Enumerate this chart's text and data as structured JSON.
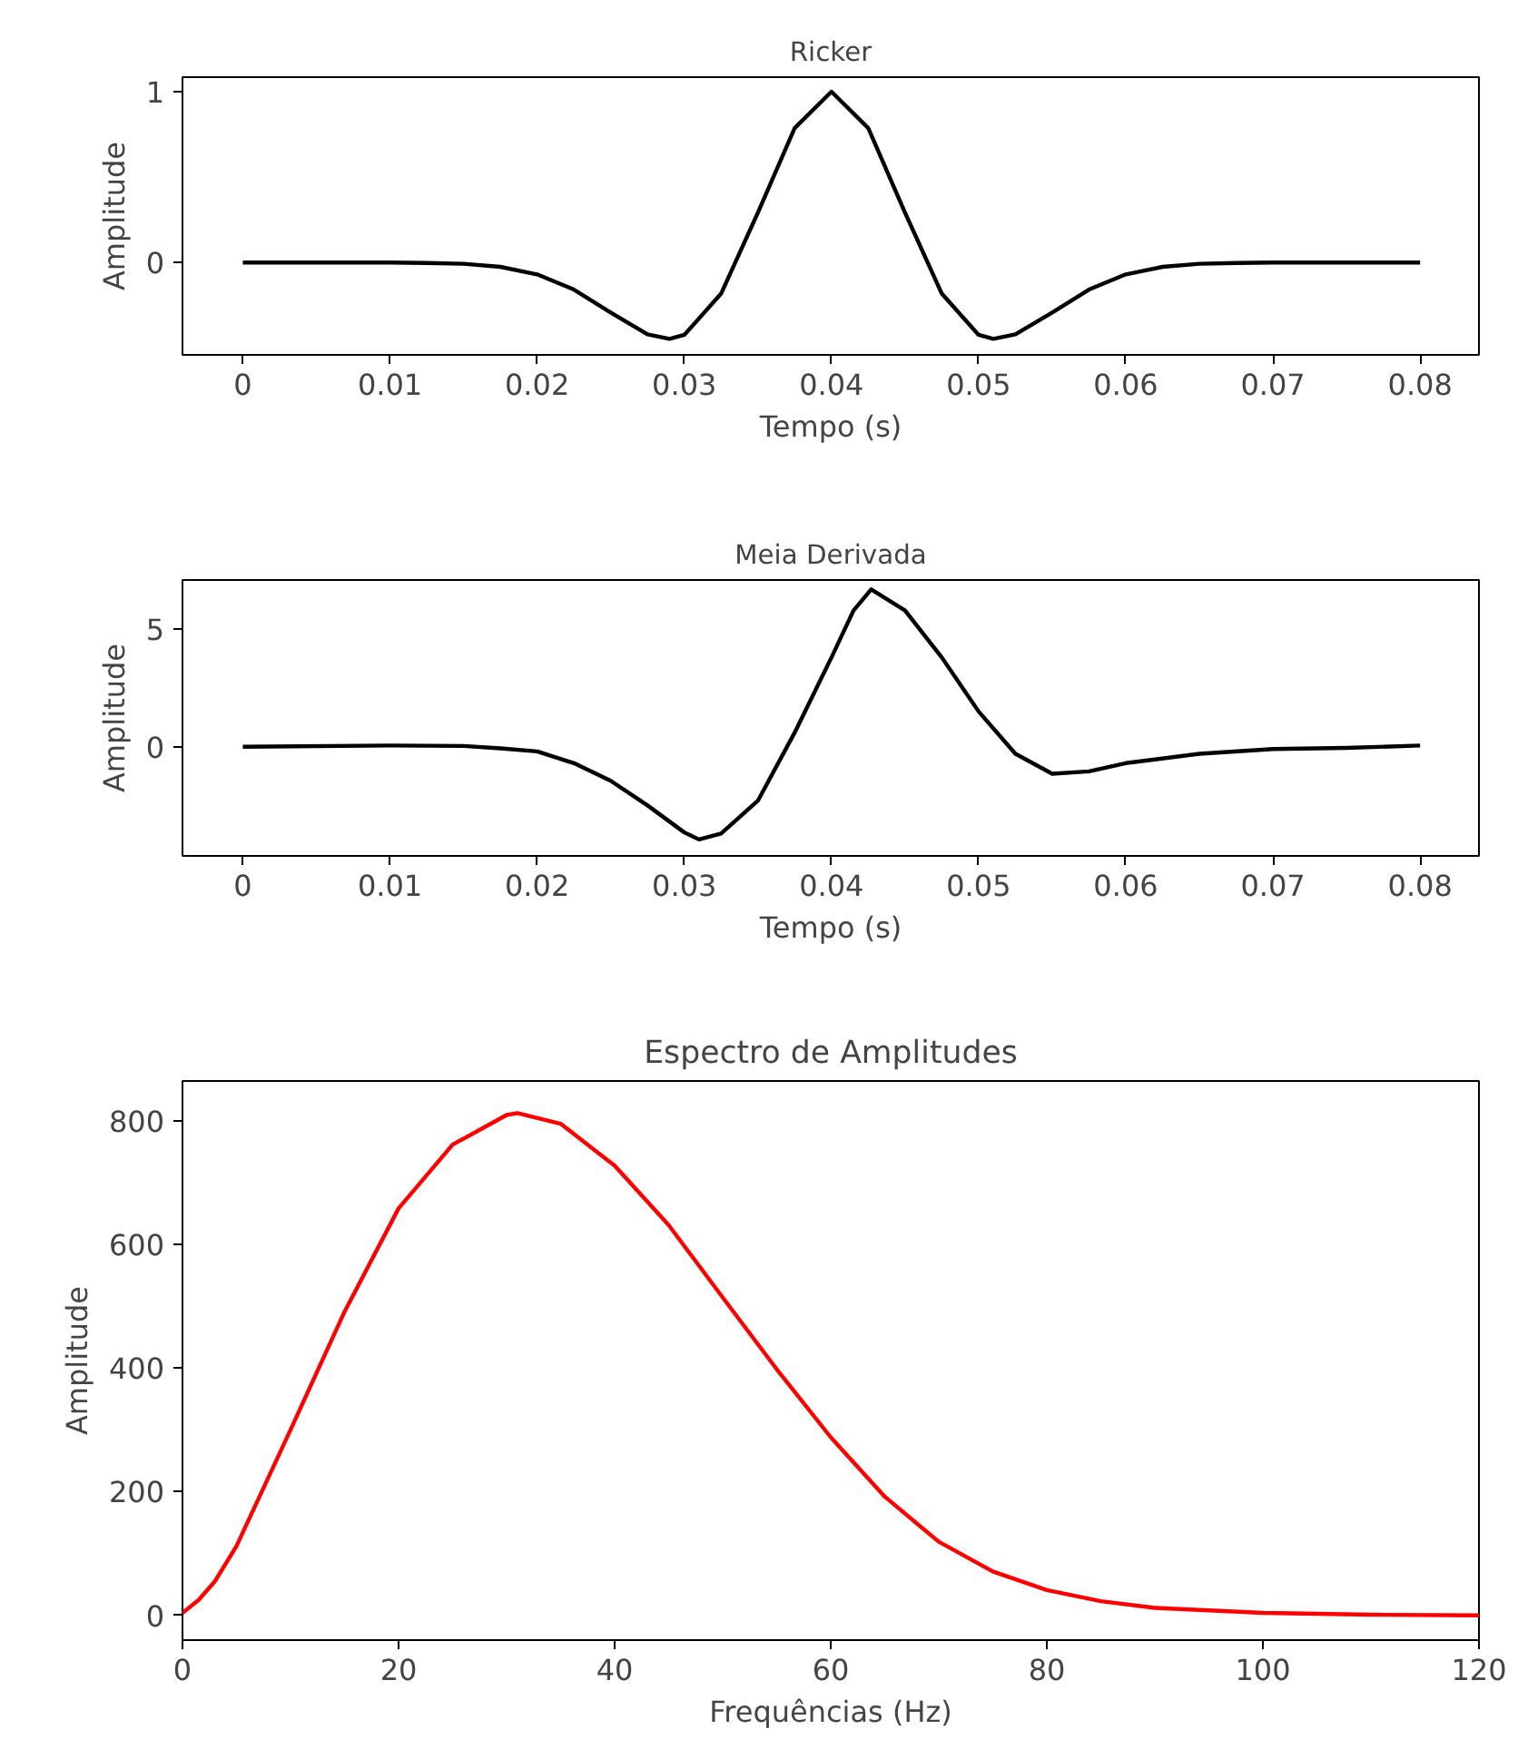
{
  "chart_data": [
    {
      "type": "line",
      "title": "Ricker",
      "xlabel": "Tempo (s)",
      "ylabel": "Amplitude",
      "xlim": [
        -0.0041,
        0.084
      ],
      "ylim": [
        -0.54,
        1.085
      ],
      "xticks": [
        0,
        0.01,
        0.02,
        0.03,
        0.04,
        0.05,
        0.06,
        0.07,
        0.08
      ],
      "yticks": [
        0,
        1
      ],
      "x": [
        0,
        0.005,
        0.01,
        0.0125,
        0.015,
        0.0175,
        0.02,
        0.0225,
        0.025,
        0.0275,
        0.029,
        0.03,
        0.0325,
        0.035,
        0.0375,
        0.04,
        0.0425,
        0.045,
        0.0475,
        0.05,
        0.051,
        0.0525,
        0.055,
        0.0575,
        0.06,
        0.0625,
        0.065,
        0.0675,
        0.07,
        0.075,
        0.08
      ],
      "series": [
        {
          "color": "#000000",
          "values": [
            0,
            0,
            0,
            -0.002,
            -0.007,
            -0.025,
            -0.069,
            -0.158,
            -0.292,
            -0.42,
            -0.446,
            -0.423,
            -0.182,
            0.292,
            0.787,
            1,
            0.787,
            0.292,
            -0.182,
            -0.423,
            -0.446,
            -0.42,
            -0.292,
            -0.158,
            -0.069,
            -0.025,
            -0.007,
            -0.002,
            0,
            0,
            0
          ]
        }
      ]
    },
    {
      "type": "line",
      "title": "Meia Derivada",
      "xlabel": "Tempo (s)",
      "ylabel": "Amplitude",
      "xlim": [
        -0.0041,
        0.084
      ],
      "ylim": [
        -4.65,
        7.1
      ],
      "xticks": [
        0,
        0.01,
        0.02,
        0.03,
        0.04,
        0.05,
        0.06,
        0.07,
        0.08
      ],
      "yticks": [
        0,
        5
      ],
      "x": [
        0,
        0.01,
        0.015,
        0.0175,
        0.02,
        0.0225,
        0.025,
        0.0275,
        0.03,
        0.031,
        0.0325,
        0.035,
        0.0375,
        0.04,
        0.0415,
        0.0427,
        0.045,
        0.0475,
        0.05,
        0.0525,
        0.055,
        0.0575,
        0.06,
        0.065,
        0.07,
        0.075,
        0.08
      ],
      "series": [
        {
          "color": "#000000",
          "values": [
            0,
            0.05,
            0.03,
            -0.07,
            -0.2,
            -0.7,
            -1.45,
            -2.5,
            -3.65,
            -3.95,
            -3.7,
            -2.3,
            0.6,
            3.8,
            5.8,
            6.7,
            5.8,
            3.8,
            1.5,
            -0.3,
            -1.15,
            -1.05,
            -0.7,
            -0.3,
            -0.1,
            -0.05,
            0.05
          ]
        }
      ]
    },
    {
      "type": "line",
      "title": "Espectro de Amplitudes",
      "xlabel": "Frequências (Hz)",
      "ylabel": "Amplitude",
      "xlim": [
        0,
        120
      ],
      "ylim": [
        -40,
        864
      ],
      "xticks": [
        0,
        20,
        40,
        60,
        80,
        100,
        120
      ],
      "yticks": [
        0,
        200,
        400,
        600,
        800
      ],
      "x": [
        0,
        1.5,
        3,
        5,
        10,
        15,
        20,
        25,
        30,
        31,
        35,
        40,
        45,
        50,
        55,
        60,
        65,
        70,
        75,
        80,
        85,
        90,
        100,
        110,
        120
      ],
      "series": [
        {
          "color": "#ff0000",
          "values": [
            4,
            25,
            55,
            112,
            300,
            491,
            658,
            761,
            809,
            812,
            795,
            727,
            631,
            514,
            398,
            288,
            192,
            119,
            71,
            41,
            23,
            12,
            4,
            1,
            0
          ]
        }
      ]
    }
  ]
}
